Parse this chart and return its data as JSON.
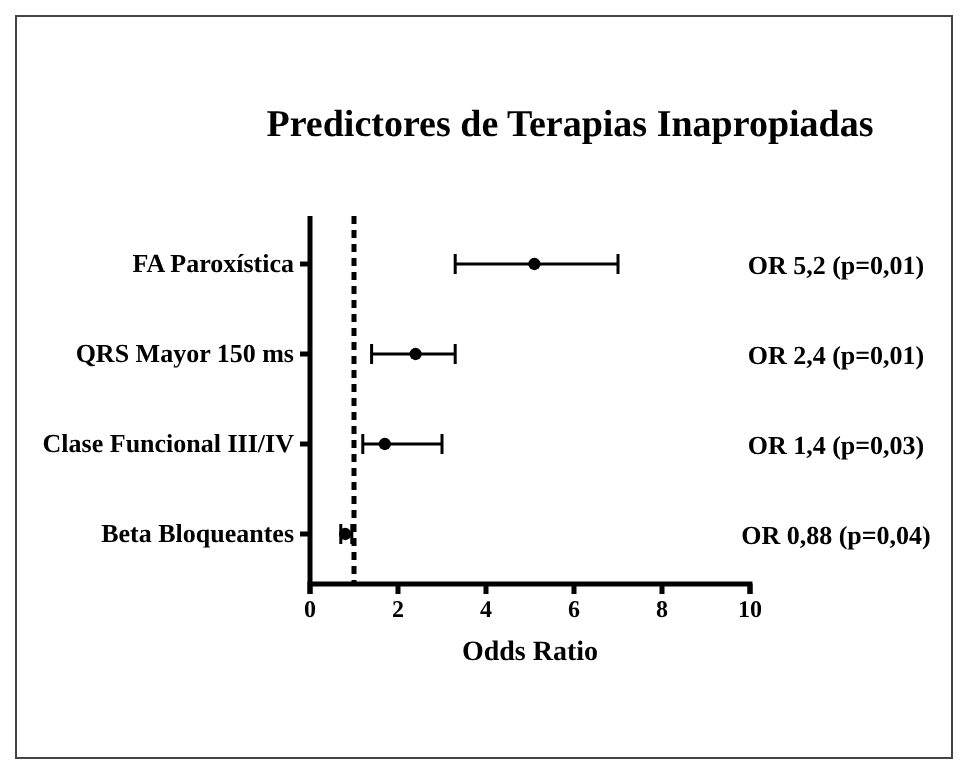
{
  "chart_data": {
    "type": "scatter",
    "orientation": "horizontal",
    "title": "Predictores de Terapias Inapropiadas",
    "xlabel": "Odds Ratio",
    "categories": [
      "FA Paroxística",
      "QRS Mayor 150 ms",
      "Clase Funcional III/IV",
      "Beta Bloqueantes"
    ],
    "values": [
      5.1,
      2.4,
      1.7,
      0.8
    ],
    "errors": [
      [
        3.3,
        7.0
      ],
      [
        1.4,
        3.3
      ],
      [
        1.2,
        3.0
      ],
      [
        0.7,
        0.95
      ]
    ],
    "color": "#000000",
    "marker": "circle",
    "xlim": [
      0,
      10
    ],
    "xticks": [
      0,
      2,
      4,
      6,
      8,
      10
    ],
    "ref_lines": [
      {
        "axis": "x",
        "value": 1,
        "line_style": "dashed",
        "color": "#000000"
      }
    ],
    "annotations": [
      "OR 5,2 (p=0,01)",
      "OR 2,4 (p=0,01)",
      "OR 1,4 (p=0,03)",
      "OR 0,88 (p=0,04)"
    ],
    "grid": false
  }
}
